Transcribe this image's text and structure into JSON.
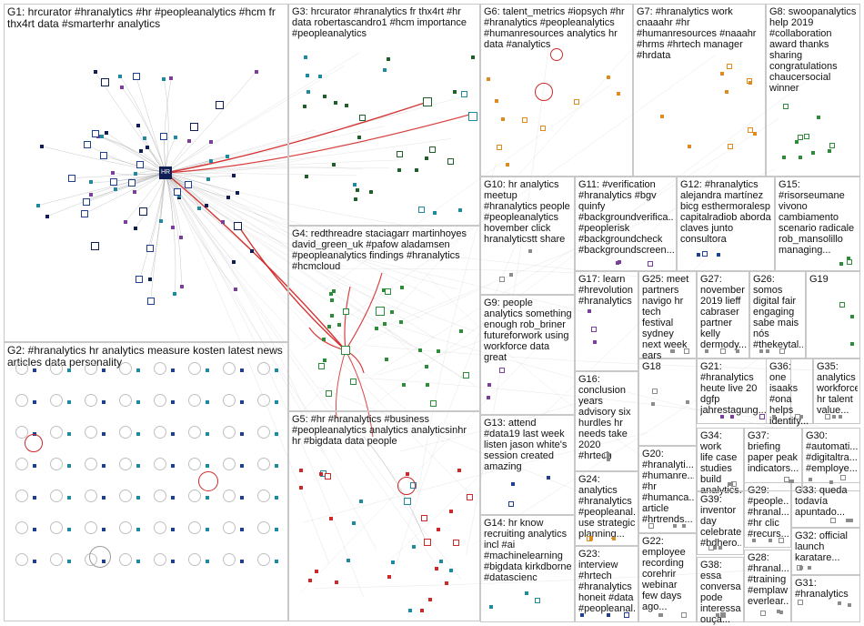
{
  "graph": {
    "groups": [
      {
        "id": "G1",
        "label": "G1: hrcurator #hranalytics #hr #peopleanalytics #hcm fr\nthx4rt data #smarterhr analytics"
      },
      {
        "id": "G2",
        "label": "G2: #hranalytics hr analytics measure kosten latest news\narticles data personality"
      },
      {
        "id": "G3",
        "label": "G3: hrcurator #hranalytics fr thx4rt #hr\ndata robertascandro1 #hcm importance\n#peopleanalytics"
      },
      {
        "id": "G4",
        "label": "G4: redthreadre staciagarr martinhoyes\ndavid_green_uk #pafow aladamsen\n#peopleanalytics findings #hranalytics\n#hcmcloud"
      },
      {
        "id": "G5",
        "label": "G5: #hr #hranalytics #business\n#peopleanalytics analytics analyticsinhr\nhr #bigdata data people"
      },
      {
        "id": "G6",
        "label": "G6: talent_metrics #iopsych #hr\n#hranalytics #peopleanalytics\n#humanresources analytics hr\ndata #analytics"
      },
      {
        "id": "G7",
        "label": "G7: #hranalytics work\ncnaaahr #hr\n#humanresources #naaahr\n#hrms #hrtech manager\n#hrdata"
      },
      {
        "id": "G8",
        "label": "G8: swoopanalytics\nhelp 2019\n#collaboration\naward thanks\nsharing\ncongratulations\nchaucersocial\nwinner"
      },
      {
        "id": "G9",
        "label": "G9: people\nanalytics something\nenough rob_briner\nfutureforwork using\nworkforce data\ngreat"
      },
      {
        "id": "G10",
        "label": "G10: hr analytics\nmeetup\n#hranalytics people\n#peopleanalytics\nhovember click\nhranalyticstt share"
      },
      {
        "id": "G11",
        "label": "G11: #verification\n#hranalytics #bgv\nquinfy\n#backgroundverifica...\n#peoplerisk\n#backgroundcheck\n#backgroundscreen..."
      },
      {
        "id": "G12",
        "label": "G12: #hranalytics\nalejandra martínez\nbicg esthermoralesp\ncapitalradiob aborda\nclaves junto\nconsultora"
      },
      {
        "id": "G13",
        "label": "G13: attend\n#data19 last week\nlisten jason white's\nsession created\namazing"
      },
      {
        "id": "G14",
        "label": "G14: hr know\nrecruiting analytics\nincl #ai\n#machinelearning\n#bigdata kirkdborne\n#datascienc"
      },
      {
        "id": "G15",
        "label": "G15:\n#risorseumane\nvivono\ncambiamento\nscenario radicale\nrob_mansolillo\nmanaging..."
      },
      {
        "id": "G16",
        "label": "G16:\nconclusion\nyears\nadvisory six\nhurdles hr\nneeds take\n2020 #hrtech"
      },
      {
        "id": "G17",
        "label": "G17: learn\n#hrevolution\n#hranalytics"
      },
      {
        "id": "G18",
        "label": "G18"
      },
      {
        "id": "G19",
        "label": "G19"
      },
      {
        "id": "G20",
        "label": "G20:\n#hranalyti...\n#humanre...\n#hr\n#humanca...\narticle\n#hrtrends..."
      },
      {
        "id": "G21",
        "label": "G21:\n#hranalytics\nheute live 20\ndgfp\njahrestagung..."
      },
      {
        "id": "G22",
        "label": "G22:\nemployee\nrecording\ncorehrir\nwebinar\nfew days\nago..."
      },
      {
        "id": "G23",
        "label": "G23:\ninterview\n#hrtech\n#hranalytics\nhoneit #data\n#peopleanal..."
      },
      {
        "id": "G24",
        "label": "G24:\nanalytics\n#hranalytics\n#peopleanal...\nuse strategic\nplanning..."
      },
      {
        "id": "G25",
        "label": "G25: meet\npartners\nnavigo hr\ntech festival\nsydney\nnext week\nears"
      },
      {
        "id": "G26",
        "label": "G26:\nsomos\ndigital fair\nengaging\nsabe mais\nnós\n#thekeytal..."
      },
      {
        "id": "G27",
        "label": "G27:\nnovember\n2019 lieff\ncabraser\npartner\nkelly\ndermody..."
      },
      {
        "id": "G28",
        "label": "G28:\n#hranal...\n#training\n#emplaw\neverlear..."
      },
      {
        "id": "G29",
        "label": "G29:\n#people...\n#hranal...\n#hr clic\n#recurs..."
      },
      {
        "id": "G30",
        "label": "G30:\n#automati...\n#digitaltra...\n#employe..."
      },
      {
        "id": "G31",
        "label": "G31:\n#hranalytics"
      },
      {
        "id": "G32",
        "label": "G32: official\nlaunch\nkaratare..."
      },
      {
        "id": "G33",
        "label": "G33: queda\ntodavía\napuntado..."
      },
      {
        "id": "G34",
        "label": "G34: work\nlife case\nstudies\nbuild\nanalytics..."
      },
      {
        "id": "G35",
        "label": "G35:\nanalytics\nworkforce\nhr talent\nvalue..."
      },
      {
        "id": "G36",
        "label": "G36: one\nisaaks\n#ona\nhelps\nidentify..."
      },
      {
        "id": "G37",
        "label": "G37:\nbriefing\npaper peak\nindicators..."
      },
      {
        "id": "G38",
        "label": "G38: essa\nconversa\npode\ninteressar\nouça..."
      },
      {
        "id": "G39",
        "label": "G39:\ninventor\nday\ncelebrate\n#bdhero..."
      }
    ],
    "hub_labels": [
      {
        "id": "G1",
        "text": "HR"
      }
    ],
    "colors": {
      "box_border": "#c8c8c8",
      "edge_gray": "#9a9a9a",
      "edge_red": "#d21e1e",
      "node_blue": "#1f3f8f",
      "node_navy": "#0f1f55",
      "node_teal": "#1e8aa0",
      "node_green": "#2e8b3a",
      "node_dark_green": "#1f5f2a",
      "node_orange": "#e08a1e",
      "node_purple": "#7a3f9a",
      "node_red": "#cc2a2a",
      "node_gray": "#8c8c8c"
    }
  }
}
